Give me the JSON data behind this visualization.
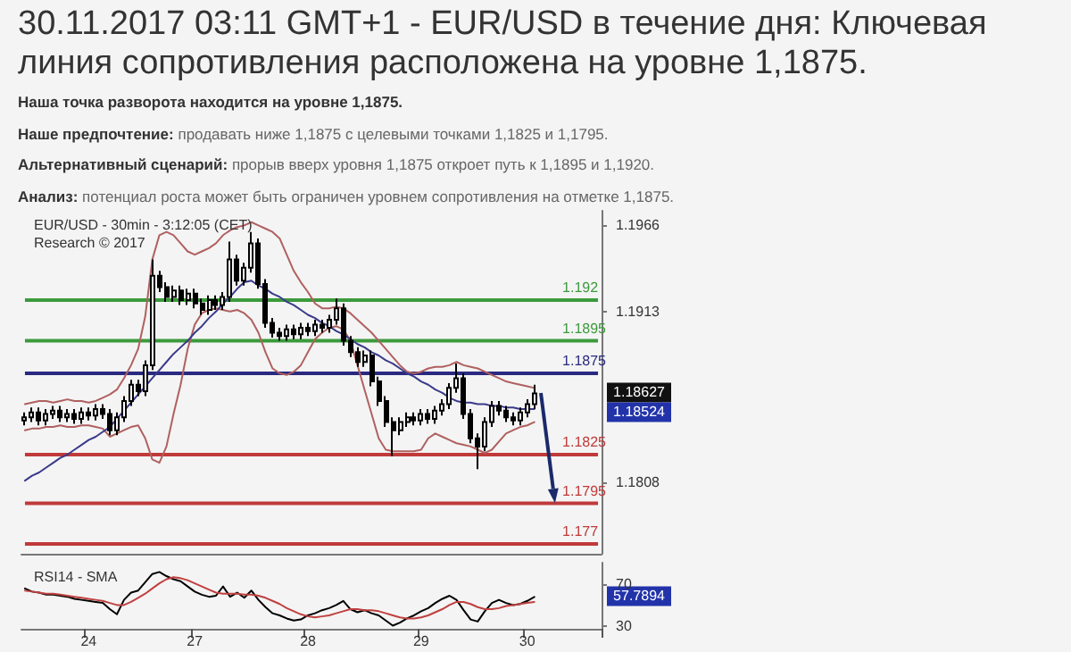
{
  "chart_data": [
    {
      "type": "candlestick",
      "title": "30.11.2017 03:11 GMT+1 - EUR/USD в течение дня: Ключевая линия сопротивления расположена на уровне 1,1875.",
      "subtitle": "Наша точка разворота находится на уровне 1,1875.\nНаше предпочтение: продавать ниже 1,1875 с целевыми точками 1,1825 и 1,1795.\nАльтернативный сценарий: прорыв вверх уровня 1,1875 откроет путь к 1,1895 и 1,1920.\nАнализ: потенциал роста может быть ограничен уровнем сопротивления на отметке 1,1875.",
      "annotations": [
        "EUR/USD - 30min - 3:12:05 (CET)\nResearch © 2017",
        "1.18627",
        "1.18524"
      ],
      "categories": [
        null,
        null,
        null,
        null,
        null,
        null,
        null,
        null,
        null,
        "24",
        null,
        null,
        null,
        null,
        null,
        null,
        null,
        null,
        null,
        null,
        null,
        null,
        null,
        null,
        "27",
        null,
        null,
        null,
        null,
        null,
        null,
        null,
        null,
        null,
        null,
        null,
        null,
        null,
        null,
        null,
        "28",
        null,
        null,
        null,
        null,
        null,
        null,
        null,
        null,
        null,
        null,
        null,
        null,
        null,
        null,
        null,
        "29",
        null,
        null,
        null,
        null,
        null,
        null,
        null,
        null,
        null,
        null,
        null,
        null,
        null,
        null,
        "30",
        null,
        null,
        null,
        null,
        null,
        null,
        null,
        null,
        null,
        null
      ],
      "color": "#000000",
      "ohlc": [
        [
          1.1846,
          1.1851,
          1.1843,
          1.1848
        ],
        [
          1.1848,
          1.1854,
          1.1845,
          1.1851
        ],
        [
          1.1851,
          1.1854,
          1.1843,
          1.1846
        ],
        [
          1.1846,
          1.1853,
          1.1843,
          1.185
        ],
        [
          1.185,
          1.1855,
          1.1847,
          1.1852
        ],
        [
          1.1852,
          1.1855,
          1.1845,
          1.1848
        ],
        [
          1.1848,
          1.1853,
          1.1845,
          1.185
        ],
        [
          1.185,
          1.1853,
          1.1844,
          1.1847
        ],
        [
          1.1847,
          1.1854,
          1.1844,
          1.1851
        ],
        [
          1.1851,
          1.1854,
          1.1846,
          1.1849
        ],
        [
          1.1849,
          1.1856,
          1.1846,
          1.1853
        ],
        [
          1.1853,
          1.1856,
          1.1847,
          1.185
        ],
        [
          1.185,
          1.1853,
          1.1837,
          1.184
        ],
        [
          1.184,
          1.1851,
          1.1837,
          1.1848
        ],
        [
          1.1848,
          1.1861,
          1.1845,
          1.1858
        ],
        [
          1.1858,
          1.1871,
          1.1855,
          1.1868
        ],
        [
          1.1868,
          1.1871,
          1.1861,
          1.1864
        ],
        [
          1.1864,
          1.1883,
          1.1861,
          1.188
        ],
        [
          1.188,
          1.1945,
          1.1877,
          1.1935
        ],
        [
          1.1935,
          1.1938,
          1.1925,
          1.1928
        ],
        [
          1.1928,
          1.1931,
          1.1919,
          1.1922
        ],
        [
          1.1922,
          1.1929,
          1.1919,
          1.1926
        ],
        [
          1.1926,
          1.1929,
          1.1917,
          1.192
        ],
        [
          1.192,
          1.1927,
          1.1917,
          1.1924
        ],
        [
          1.1924,
          1.1927,
          1.1915,
          1.1918
        ],
        [
          1.1918,
          1.1921,
          1.1911,
          1.1914
        ],
        [
          1.1914,
          1.1923,
          1.1911,
          1.192
        ],
        [
          1.192,
          1.1923,
          1.1914,
          1.1917
        ],
        [
          1.1917,
          1.1925,
          1.1914,
          1.1922
        ],
        [
          1.1922,
          1.1956,
          1.1919,
          1.1945
        ],
        [
          1.1945,
          1.1948,
          1.1929,
          1.1932
        ],
        [
          1.1932,
          1.1943,
          1.1929,
          1.194
        ],
        [
          1.194,
          1.1962,
          1.1937,
          1.1955
        ],
        [
          1.1955,
          1.1958,
          1.1927,
          1.193
        ],
        [
          1.193,
          1.1933,
          1.1903,
          1.1906
        ],
        [
          1.1906,
          1.1909,
          1.1897,
          1.19
        ],
        [
          1.19,
          1.1903,
          1.1895,
          1.1898
        ],
        [
          1.1898,
          1.1905,
          1.1895,
          1.1902
        ],
        [
          1.1902,
          1.1905,
          1.1896,
          1.1899
        ],
        [
          1.1899,
          1.1906,
          1.1896,
          1.1903
        ],
        [
          1.1903,
          1.1906,
          1.1898,
          1.1901
        ],
        [
          1.1901,
          1.1908,
          1.1898,
          1.1905
        ],
        [
          1.1905,
          1.1908,
          1.19,
          1.1903
        ],
        [
          1.1903,
          1.1911,
          1.19,
          1.1908
        ],
        [
          1.1908,
          1.1921,
          1.1905,
          1.1915
        ],
        [
          1.1915,
          1.1918,
          1.1892,
          1.1895
        ],
        [
          1.1895,
          1.1898,
          1.1885,
          1.1888
        ],
        [
          1.1888,
          1.1891,
          1.1879,
          1.1882
        ],
        [
          1.1882,
          1.1889,
          1.1879,
          1.1886
        ],
        [
          1.1886,
          1.1889,
          1.1867,
          1.187
        ],
        [
          1.187,
          1.1873,
          1.1855,
          1.1858
        ],
        [
          1.1858,
          1.1861,
          1.1842,
          1.1845
        ],
        [
          1.1845,
          1.1848,
          1.1824,
          1.184
        ],
        [
          1.184,
          1.1848,
          1.1837,
          1.1845
        ],
        [
          1.1845,
          1.1851,
          1.1842,
          1.1848
        ],
        [
          1.1848,
          1.1851,
          1.1843,
          1.1846
        ],
        [
          1.1846,
          1.1853,
          1.1843,
          1.185
        ],
        [
          1.185,
          1.1853,
          1.1844,
          1.1847
        ],
        [
          1.1847,
          1.1855,
          1.1844,
          1.1852
        ],
        [
          1.1852,
          1.1859,
          1.1849,
          1.1856
        ],
        [
          1.1856,
          1.1869,
          1.1853,
          1.1866
        ],
        [
          1.1866,
          1.1881,
          1.1863,
          1.1872
        ],
        [
          1.1872,
          1.1875,
          1.1847,
          1.185
        ],
        [
          1.185,
          1.1853,
          1.1832,
          1.1835
        ],
        [
          1.1835,
          1.1838,
          1.1816,
          1.183
        ],
        [
          1.183,
          1.1848,
          1.1827,
          1.1845
        ],
        [
          1.1845,
          1.1858,
          1.1842,
          1.1855
        ],
        [
          1.1855,
          1.1858,
          1.1849,
          1.1852
        ],
        [
          1.1852,
          1.1855,
          1.1845,
          1.1848
        ],
        [
          1.1848,
          1.1851,
          1.1843,
          1.1846
        ],
        [
          1.1846,
          1.1854,
          1.1843,
          1.1851
        ],
        [
          1.1851,
          1.1859,
          1.1848,
          1.1856
        ],
        [
          1.1856,
          1.1868,
          1.1853,
          1.18627
        ],
        null,
        null,
        null,
        null,
        null,
        null,
        null,
        null,
        null
      ],
      "series": [
        {
          "type": "line",
          "color": "#b06060",
          "values": [
            1.1856,
            1.1857,
            1.1858,
            1.1858,
            1.1857,
            1.1858,
            1.1859,
            1.1858,
            1.1858,
            1.1857,
            1.1858,
            1.186,
            1.1862,
            1.1865,
            1.1872,
            1.188,
            1.189,
            1.191,
            1.1945,
            1.196,
            1.1962,
            1.196,
            1.1955,
            1.195,
            1.1948,
            1.195,
            1.1952,
            1.1955,
            1.196,
            1.1963,
            1.1965,
            1.1966,
            1.1968,
            1.1966,
            1.1964,
            1.1962,
            1.1958,
            1.1948,
            1.1938,
            1.1931,
            1.1925,
            1.1918,
            1.1915,
            1.1915,
            1.1916,
            1.1915,
            1.1912,
            1.1908,
            1.1904,
            1.19,
            1.1895,
            1.189,
            1.1885,
            1.188,
            1.1876,
            1.1875,
            1.1876,
            1.1878,
            1.1879,
            1.1879,
            1.188,
            1.1882,
            1.188,
            1.1879,
            1.1878,
            1.1876,
            1.1874,
            1.1872,
            1.187,
            1.1869,
            1.1868,
            1.1867,
            1.1866,
            null,
            null,
            null,
            null,
            null,
            null,
            null,
            null,
            null
          ]
        },
        {
          "type": "line",
          "color": "#b06060",
          "values": [
            1.184,
            1.1841,
            1.1841,
            1.1842,
            1.1842,
            1.1843,
            1.1842,
            1.1842,
            1.1843,
            1.1843,
            1.1842,
            1.1841,
            1.1836,
            1.1838,
            1.184,
            1.1842,
            1.1843,
            1.1835,
            1.1822,
            1.182,
            1.183,
            1.185,
            1.1868,
            1.189,
            1.1905,
            1.1912,
            1.1914,
            1.1915,
            1.1914,
            1.1913,
            1.1914,
            1.1912,
            1.1908,
            1.19,
            1.1888,
            1.1878,
            1.1875,
            1.1874,
            1.1876,
            1.188,
            1.1888,
            1.1896,
            1.19,
            1.1903,
            1.1904,
            1.1902,
            1.1895,
            1.188,
            1.1865,
            1.185,
            1.1835,
            1.1828,
            1.1827,
            1.1827,
            1.1827,
            1.1827,
            1.1828,
            1.1835,
            1.1838,
            1.1836,
            1.1834,
            1.1832,
            1.1831,
            1.183,
            1.1828,
            1.1826,
            1.1828,
            1.1833,
            1.1838,
            1.184,
            1.1842,
            1.1843,
            1.1845,
            null,
            null,
            null,
            null,
            null,
            null,
            null,
            null,
            null
          ]
        },
        {
          "type": "line",
          "color": "#3a3a8a",
          "values": [
            1.1809,
            1.1812,
            1.1814,
            1.1817,
            1.182,
            1.1823,
            1.1825,
            1.1828,
            1.1831,
            1.1834,
            1.1836,
            1.1839,
            1.1842,
            1.1847,
            1.1852,
            1.1857,
            1.1862,
            1.1867,
            1.1872,
            1.1877,
            1.1882,
            1.1887,
            1.1891,
            1.1895,
            1.19,
            1.1904,
            1.1909,
            1.1913,
            1.1918,
            1.1922,
            1.1927,
            1.1931,
            1.1932,
            1.1929,
            1.1927,
            1.1924,
            1.1922,
            1.1919,
            1.1917,
            1.1914,
            1.1911,
            1.1909,
            1.1906,
            1.1904,
            1.1901,
            1.1899,
            1.1896,
            1.1893,
            1.1891,
            1.1888,
            1.1886,
            1.1883,
            1.1881,
            1.1878,
            1.1875,
            1.1873,
            1.187,
            1.1868,
            1.1865,
            1.1863,
            1.186,
            1.1858,
            1.1857,
            1.1857,
            1.1856,
            1.1856,
            1.1855,
            1.1855,
            1.1854,
            1.1854,
            1.1853,
            1.1853,
            1.1853,
            null,
            null,
            null,
            null,
            null,
            null,
            null,
            null,
            null
          ]
        }
      ],
      "ylim": [
        1.1764,
        1.1975
      ],
      "yticks": [
        1.1808,
        1.1913,
        1.1966
      ],
      "ref_lines": [
        {
          "axis": "y",
          "value": 1.192,
          "label": "1.192",
          "color": "#3c9a3c"
        },
        {
          "axis": "y",
          "value": 1.1895,
          "label": "1.1895",
          "color": "#3c9a3c"
        },
        {
          "axis": "y",
          "value": 1.1875,
          "label": "1.1875",
          "color": "#2a2a80"
        },
        {
          "axis": "y",
          "value": 1.1825,
          "label": "1.1825",
          "color": "#c03a3a"
        },
        {
          "axis": "y",
          "value": 1.1795,
          "label": "1.1795",
          "color": "#c03a3a"
        },
        {
          "axis": "y",
          "value": 1.177,
          "label": "1.177",
          "color": "#c03a3a"
        }
      ],
      "tick_labels": "y"
    },
    {
      "type": "line",
      "title": "RSI14 - SMA",
      "categories": [
        null,
        null,
        null,
        null,
        null,
        null,
        null,
        null,
        null,
        "24",
        null,
        null,
        null,
        null,
        null,
        null,
        null,
        null,
        null,
        null,
        null,
        null,
        null,
        null,
        "27",
        null,
        null,
        null,
        null,
        null,
        null,
        null,
        null,
        null,
        null,
        null,
        null,
        null,
        null,
        null,
        "28",
        null,
        null,
        null,
        null,
        null,
        null,
        null,
        null,
        null,
        null,
        null,
        null,
        null,
        null,
        null,
        "29",
        null,
        null,
        null,
        null,
        null,
        null,
        null,
        null,
        null,
        null,
        null,
        null,
        null,
        null,
        "30",
        null,
        null,
        null,
        null,
        null,
        null,
        null,
        null,
        null,
        null
      ],
      "series": [
        {
          "color": "#000000",
          "values": [
            66,
            63,
            62,
            60,
            60,
            59,
            58,
            56,
            55,
            54,
            53,
            52,
            46,
            41,
            55,
            62,
            64,
            72,
            80,
            82,
            78,
            75,
            73,
            68,
            63,
            60,
            58,
            59,
            68,
            58,
            62,
            57,
            64,
            55,
            48,
            42,
            40,
            37,
            35,
            36,
            40,
            42,
            45,
            47,
            50,
            54,
            46,
            43,
            45,
            42,
            40,
            35,
            30,
            33,
            37,
            40,
            44,
            47,
            52,
            56,
            59,
            55,
            45,
            36,
            34,
            44,
            52,
            55,
            52,
            50,
            51,
            54,
            57.7894,
            null,
            null,
            null,
            null,
            null,
            null,
            null,
            null,
            null
          ]
        },
        {
          "color": "#c04040",
          "values": [
            64,
            63,
            62,
            61,
            61,
            60,
            59,
            58,
            57,
            56,
            55,
            54,
            52,
            50,
            50,
            53,
            57,
            61,
            66,
            71,
            75,
            77,
            76,
            74,
            71,
            68,
            65,
            62,
            61,
            61,
            61,
            60,
            60,
            59,
            57,
            54,
            51,
            47,
            44,
            41,
            39,
            38,
            39,
            40,
            42,
            44,
            46,
            46,
            45,
            45,
            44,
            42,
            40,
            38,
            37,
            37,
            38,
            40,
            43,
            46,
            50,
            53,
            53,
            51,
            48,
            46,
            46,
            47,
            49,
            50,
            51,
            52,
            53,
            null,
            null,
            null,
            null,
            null,
            null,
            null,
            null,
            null
          ]
        }
      ],
      "ylim": [
        27,
        91
      ],
      "yticks": [
        30,
        70
      ],
      "annotations": [
        "57.7894"
      ]
    }
  ]
}
